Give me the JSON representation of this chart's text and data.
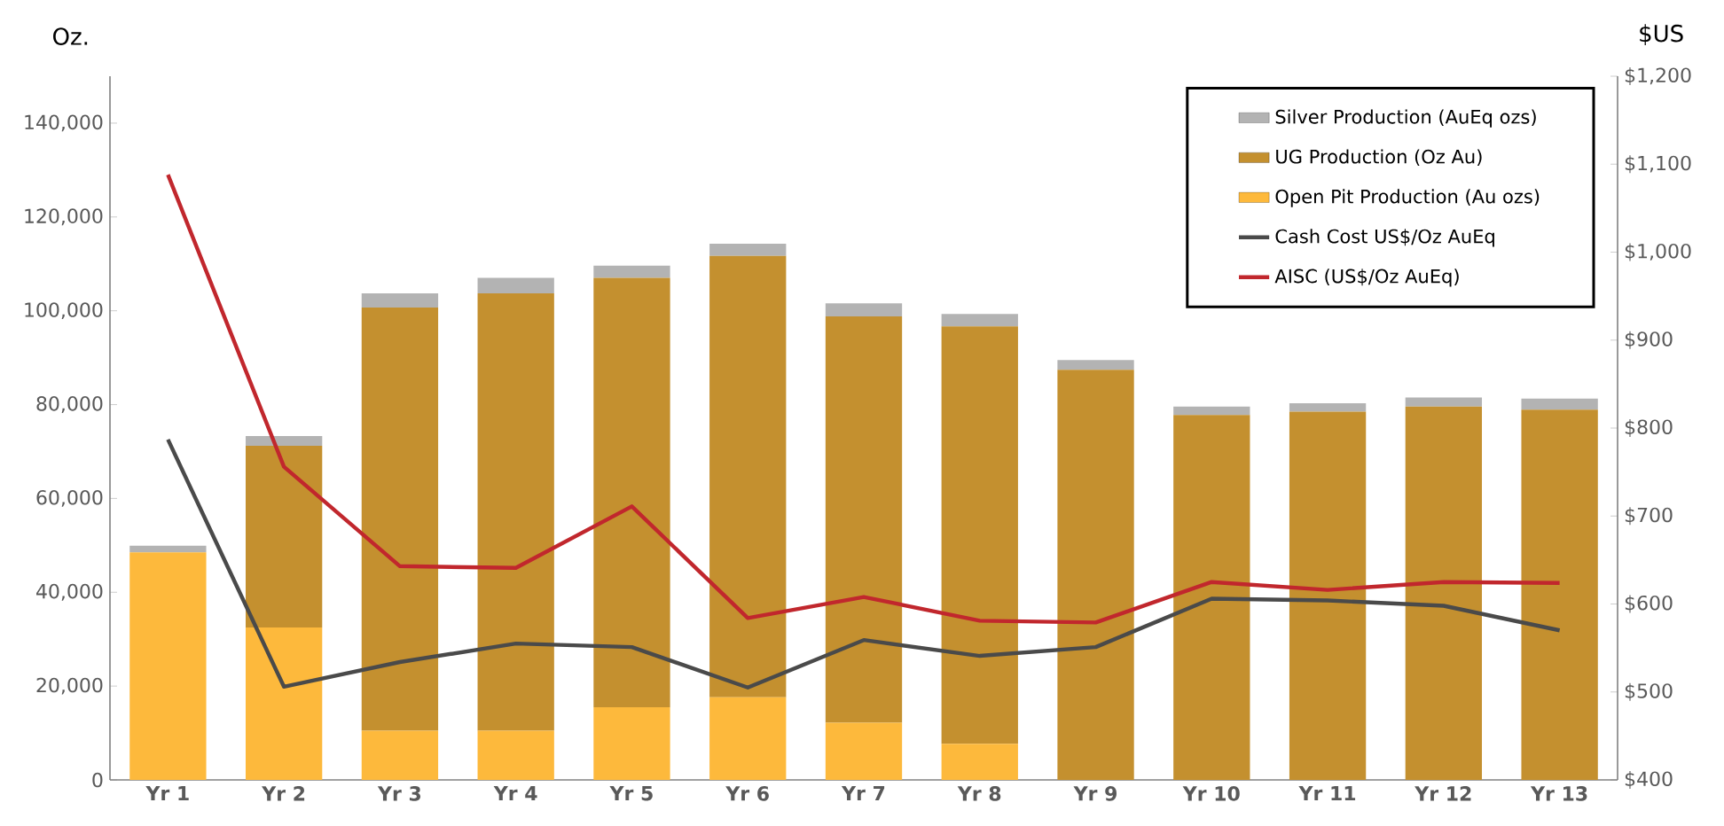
{
  "chart_data": {
    "type": "bar",
    "stacked": true,
    "ylabel": "Oz.",
    "y2label": "$US",
    "categories": [
      "Yr 1",
      "Yr 2",
      "Yr 3",
      "Yr 4",
      "Yr 5",
      "Yr 6",
      "Yr 7",
      "Yr 8",
      "Yr 9",
      "Yr 10",
      "Yr 11",
      "Yr 12",
      "Yr 13"
    ],
    "series": [
      {
        "name": "Open Pit Production (Au ozs)",
        "color": "#fdb93c",
        "values": [
          48500,
          32500,
          10500,
          10500,
          15500,
          17600,
          12200,
          7700,
          0,
          0,
          0,
          0,
          0
        ]
      },
      {
        "name": "UG Production (Oz Au)",
        "color": "#c4902f",
        "values": [
          0,
          38700,
          90200,
          93200,
          91500,
          94100,
          86600,
          89000,
          87400,
          77800,
          78500,
          79600,
          78900
        ]
      },
      {
        "name": "Silver Production (AuEq ozs)",
        "color": "#b3b3b3",
        "values": [
          1400,
          2100,
          3000,
          3300,
          2600,
          2600,
          2800,
          2600,
          2100,
          1800,
          1800,
          1900,
          2400
        ]
      },
      {
        "name": "Cash Cost US$/Oz AuEq",
        "type": "line",
        "axis": "y2",
        "color": "#4a4a4a",
        "values": [
          787,
          506,
          534,
          555,
          551,
          505,
          559,
          541,
          551,
          606,
          604,
          598,
          570
        ]
      },
      {
        "name": "AISC (US$/Oz AuEq)",
        "type": "line",
        "axis": "y2",
        "color": "#c1272d",
        "values": [
          1088,
          756,
          643,
          641,
          711,
          584,
          608,
          581,
          579,
          625,
          616,
          625,
          624
        ]
      }
    ],
    "ylim": [
      0,
      150000
    ],
    "yticks": [
      {
        "value": 0,
        "label": "0"
      },
      {
        "value": 20000,
        "label": "20,000"
      },
      {
        "value": 40000,
        "label": "40,000"
      },
      {
        "value": 60000,
        "label": "60,000"
      },
      {
        "value": 80000,
        "label": "80,000"
      },
      {
        "value": 100000,
        "label": "100,000"
      },
      {
        "value": 120000,
        "label": "120,000"
      },
      {
        "value": 140000,
        "label": "140,000"
      }
    ],
    "y2lim": [
      400,
      1200
    ],
    "y2ticks": [
      {
        "value": 400,
        "label": "$400"
      },
      {
        "value": 500,
        "label": "$500"
      },
      {
        "value": 600,
        "label": "$600"
      },
      {
        "value": 700,
        "label": "$700"
      },
      {
        "value": 800,
        "label": "$800"
      },
      {
        "value": 900,
        "label": "$900"
      },
      {
        "value": 1000,
        "label": "$1,000"
      },
      {
        "value": 1100,
        "label": "$1,100"
      },
      {
        "value": 1200,
        "label": "$1,200"
      }
    ],
    "legend": "top right",
    "marker": "none",
    "line_style": "solid"
  }
}
